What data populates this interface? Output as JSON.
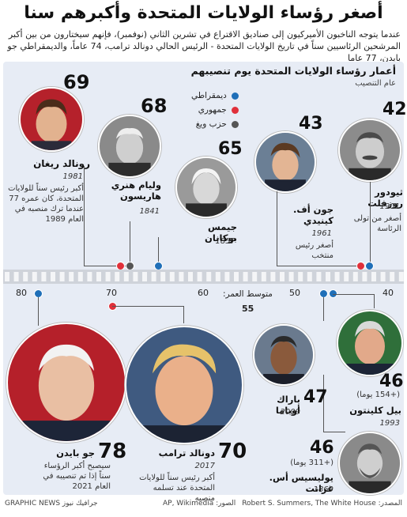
{
  "header": {
    "title": "أصغر رؤساء الولايات المتحدة وأكبرهم سنا",
    "intro": "عندما يتوجه الناخبون الأميركيون إلى صناديق الاقتراع في تشرين الثاني (نوفمبر)، فإنهم سيختارون من بين أكبر المرشحين الرئاسيين سناً في تاريخ الولايات المتحدة - الرئيس الحالي دونالد ترامب، 74 عاماً، والديمقراطي جو بايدن، 77 عاما"
  },
  "chart": {
    "subtitle": "أعمار رؤساء الولايات المتحدة يوم تنصيبهم",
    "subtitle2": "عام التنصيب",
    "legend": [
      {
        "label": "ديمقراطي",
        "color": "#1f6fb8"
      },
      {
        "label": "جمهوري",
        "color": "#e0303a"
      },
      {
        "label": "حزب ويغ",
        "color": "#555555"
      }
    ],
    "axis_ticks": [
      "80",
      "70",
      "60",
      "50",
      "40"
    ],
    "average_label": "متوسط العمر:",
    "average_value": "55"
  },
  "presidents": {
    "reagan": {
      "age": "69",
      "name": "رونالد ريغان",
      "year": "1981",
      "note": "أكبر رئيس سناً للولايات المتحدة، كان عمره 77 عندما ترك منصبه في العام 1989"
    },
    "harrison": {
      "age": "68",
      "name": "وليام هنري هاريسون",
      "year": "1841"
    },
    "buchanan": {
      "age": "65",
      "name": "جيمس بوكانان",
      "year": "1857"
    },
    "kennedy": {
      "age": "43",
      "name": "جون أف. كينيدي",
      "year": "1961",
      "note": "أصغر رئيس منتخب"
    },
    "roosevelt": {
      "age": "42",
      "name": "ثيودور روزفلت",
      "year": "1901",
      "note": "أصغر من تولى الرئاسة"
    },
    "biden": {
      "age": "78",
      "name": "جو بايدن",
      "note": "سيصبح أكبر الرؤساء سناً إذا تم تنصيبه في العام 2021"
    },
    "trump": {
      "age": "70",
      "name": "دونالد ترامب",
      "year": "2017",
      "note": "أكبر رئيس سناً للولايات المتحدة عند تسلمه منصبه"
    },
    "obama": {
      "age": "47",
      "name": "باراك أوباما",
      "year": "2009"
    },
    "clinton": {
      "age": "46",
      "days": "(+154 يوما)",
      "name": "بيل كلينتون",
      "year": "1993"
    },
    "grant": {
      "age": "46",
      "days": "(+311 يوما)",
      "name": "يوليسيس أس. غرانت",
      "year": "1869"
    }
  },
  "footer": {
    "source_right": "المصدر: Robert S. Summers, The White House",
    "source_mid": "الصور: AP, Wikimedia",
    "brand": "GRAPHIC NEWS جرافيك نيوز"
  },
  "colors": {
    "dem": "#1f6fb8",
    "rep": "#e0303a",
    "whig": "#555555",
    "panel": "#e7ecf5"
  }
}
